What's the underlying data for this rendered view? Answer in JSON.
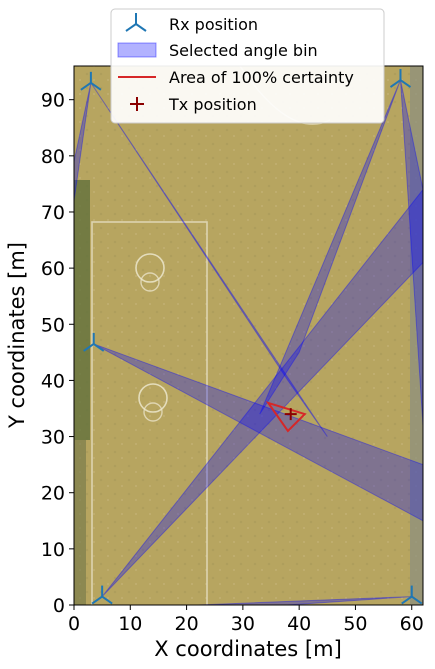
{
  "chart_data": {
    "type": "scatter",
    "xlabel": "X coordinates [m]",
    "ylabel": "Y coordinates [m]",
    "xlim": [
      0,
      62
    ],
    "ylim": [
      0,
      96
    ],
    "xticks": [
      0,
      10,
      20,
      30,
      40,
      50,
      60
    ],
    "yticks": [
      0,
      10,
      20,
      30,
      40,
      50,
      60,
      70,
      80,
      90
    ],
    "grid": false,
    "legend_position": "top-center",
    "background": "aerial photo of a sports field",
    "legend": [
      {
        "label": "Rx position",
        "marker": "tri-down",
        "color": "#1f77b4"
      },
      {
        "label": "Selected angle bin",
        "marker": "patch",
        "color": "#0000ff"
      },
      {
        "label": "Area of 100% certainty",
        "marker": "line",
        "color": "#d62728"
      },
      {
        "label": "Tx position",
        "marker": "plus",
        "color": "#8b0000"
      }
    ],
    "rx_positions": [
      {
        "x": 3,
        "y": 93
      },
      {
        "x": 58,
        "y": 93.5
      },
      {
        "x": 3.5,
        "y": 46.5
      },
      {
        "x": 5,
        "y": 1.5
      },
      {
        "x": 60,
        "y": 1.5
      }
    ],
    "angle_bins": [
      {
        "rx": [
          3,
          93
        ],
        "edges": [
          [
            38,
            40
          ],
          [
            45,
            30
          ]
        ]
      },
      {
        "rx": [
          3,
          93
        ],
        "edges": [
          [
            0,
            79
          ],
          [
            0,
            72
          ]
        ]
      },
      {
        "rx": [
          58,
          93.5
        ],
        "edges": [
          [
            33,
            34
          ],
          [
            40,
            45
          ]
        ]
      },
      {
        "rx": [
          58,
          93.5
        ],
        "edges": [
          [
            62,
            74
          ],
          [
            62,
            32
          ]
        ]
      },
      {
        "rx": [
          3.5,
          46.5
        ],
        "edges": [
          [
            62,
            25
          ],
          [
            62,
            15
          ]
        ]
      },
      {
        "rx": [
          5,
          1.5
        ],
        "edges": [
          [
            62,
            74
          ],
          [
            62,
            61
          ]
        ]
      },
      {
        "rx": [
          60,
          1.5
        ],
        "edges": [
          [
            22,
            0
          ],
          [
            38,
            0
          ]
        ]
      }
    ],
    "certainty_area": [
      [
        34.5,
        36
      ],
      [
        38,
        31
      ],
      [
        41,
        34
      ]
    ],
    "tx_position": {
      "x": 38.5,
      "y": 34
    }
  }
}
